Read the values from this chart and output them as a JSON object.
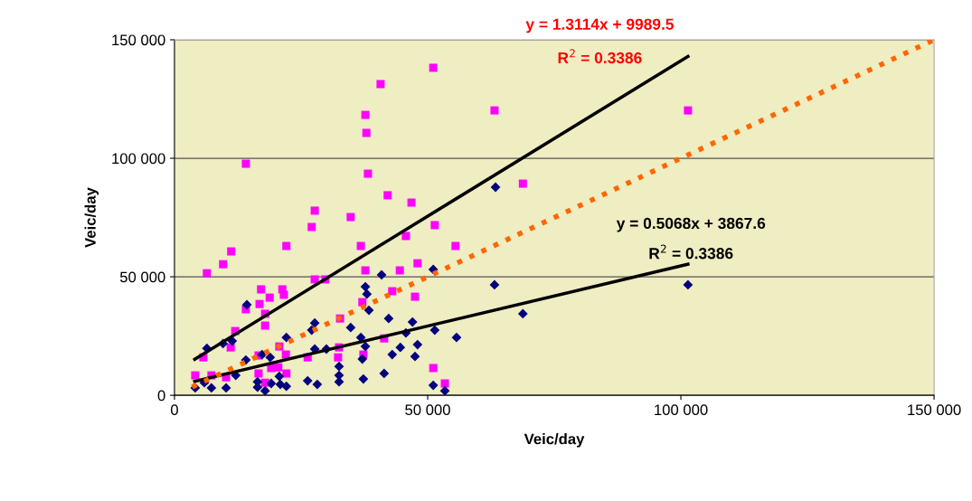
{
  "chart_data": {
    "type": "scatter",
    "xlabel": "Veic/day",
    "ylabel": "Veic/day",
    "xlim": [
      0,
      150000
    ],
    "ylim": [
      0,
      150000
    ],
    "xticks": [
      0,
      {
        "value": 50000,
        "label": "50 000"
      },
      {
        "value": 100000,
        "label": "100 000"
      },
      {
        "value": 150000,
        "label": "150 000"
      }
    ],
    "yticks": [
      0,
      {
        "value": 50000,
        "label": "50 000"
      },
      {
        "value": 100000,
        "label": "100 000"
      },
      {
        "value": 150000,
        "label": "150 000"
      }
    ],
    "grid": "y",
    "legend": false,
    "annotations": [
      "y = 1.3114x + 9989.5",
      "R$^{2}$ = 0.3386",
      "y = 0.5068x + 3867.6",
      "R$^{2}$ = 0.3386"
    ],
    "series": [
      {
        "marker": "square",
        "color": "#ff00ff",
        "x": [
          4100,
          5700,
          6400,
          9600,
          11200,
          14100,
          17100,
          18800,
          16800,
          14100,
          17900,
          17900,
          12000,
          11100,
          7300,
          10200,
          16600,
          16600,
          19100,
          20500,
          22100,
          17900,
          22100,
          21300,
          21600,
          27100,
          27700,
          27700,
          29800,
          32700,
          20700,
          22000,
          26300,
          32300,
          32500,
          34800,
          37700,
          37900,
          40700,
          51100,
          38200,
          42100,
          46800,
          51400,
          45700,
          36800,
          55500,
          48000,
          37700,
          44500,
          43000,
          37100,
          47500,
          41400,
          37300,
          51100,
          53400,
          63200,
          101400,
          68800
        ],
        "values": [
          8400,
          16000,
          51500,
          55300,
          60700,
          97700,
          44700,
          41200,
          38500,
          36300,
          34400,
          29400,
          27100,
          20200,
          8400,
          7600,
          16800,
          9200,
          11500,
          11800,
          9200,
          5300,
          63000,
          44700,
          42400,
          71000,
          77900,
          48900,
          48900,
          32400,
          20600,
          17200,
          16000,
          16000,
          20200,
          75200,
          118300,
          110700,
          131300,
          138200,
          93500,
          84400,
          81300,
          71800,
          67200,
          63000,
          63000,
          55700,
          52700,
          52700,
          43900,
          39300,
          41600,
          24000,
          17200,
          11500,
          5000,
          120200,
          120200,
          89300
        ]
      },
      {
        "marker": "diamond",
        "color": "#000080",
        "x": [
          6400,
          9600,
          11400,
          14300,
          22100,
          27700,
          27100,
          34800,
          27700,
          30000,
          32500,
          32500,
          32500,
          26300,
          28200,
          14100,
          12100,
          17300,
          18900,
          20700,
          20900,
          22100,
          19100,
          16400,
          16400,
          17900,
          4100,
          7300,
          10200,
          5900,
          40900,
          51100,
          37700,
          38000,
          38400,
          63200,
          68800,
          42300,
          47000,
          51400,
          45700,
          36800,
          55700,
          37700,
          48000,
          44600,
          43000,
          47500,
          37100,
          41400,
          37300,
          51100,
          53400,
          63400,
          101400
        ],
        "values": [
          19800,
          21800,
          22900,
          38200,
          24400,
          30500,
          27500,
          28600,
          19500,
          19500,
          12200,
          8400,
          5700,
          6100,
          4600,
          14900,
          8400,
          17200,
          16000,
          8000,
          4600,
          3800,
          5000,
          5700,
          3400,
          1900,
          3100,
          3100,
          3100,
          5300,
          50800,
          53100,
          45800,
          42700,
          35900,
          46600,
          34400,
          32400,
          30900,
          27500,
          26300,
          24400,
          24400,
          20600,
          21400,
          20200,
          17200,
          16400,
          15300,
          9200,
          6900,
          4200,
          1900,
          87800,
          46600
        ]
      },
      {
        "type": "line",
        "line_style": "solid",
        "color": "#000000",
        "x": [
          4000,
          101400
        ],
        "values": [
          15200,
          143000
        ]
      },
      {
        "type": "line",
        "line_style": "solid",
        "color": "#000000",
        "x": [
          4000,
          101400
        ],
        "values": [
          5900,
          55300
        ]
      },
      {
        "type": "line",
        "line_style": "dotted",
        "color": "#ff6600",
        "x": [
          3500,
          150000
        ],
        "values": [
          3500,
          150000
        ]
      }
    ]
  }
}
